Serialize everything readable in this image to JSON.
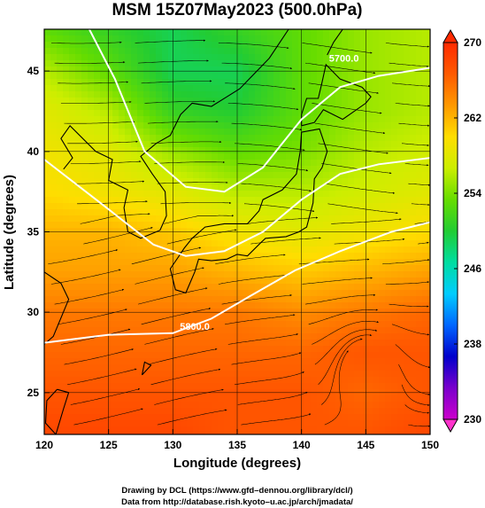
{
  "chart_data": {
    "type": "heatmap",
    "title": "MSM 15Z07May2023 (500.0hPa)",
    "xlabel": "Longitude (degrees)",
    "ylabel": "Latitude  (degrees)",
    "xlim": [
      120,
      150
    ],
    "ylim": [
      22.4,
      47.6
    ],
    "x_ticks": [
      120,
      125,
      130,
      135,
      140,
      145,
      150
    ],
    "y_ticks": [
      25,
      30,
      35,
      40,
      45
    ],
    "grid": true,
    "colorbar": {
      "ticks": [
        230,
        238,
        246,
        254,
        262,
        270
      ],
      "range": [
        230,
        270
      ],
      "colors": [
        "#cc00cc",
        "#7a00cc",
        "#0000cc",
        "#0066ff",
        "#00ccff",
        "#00dda0",
        "#22cc33",
        "#66dd00",
        "#ccee00",
        "#ffdd00",
        "#ff9900",
        "#ff5a00",
        "#ff2a00"
      ]
    },
    "field": "temperature (K)",
    "contours": [
      {
        "label": "5700.0",
        "color": "#ffffff"
      },
      {
        "label": "5800.0",
        "color": "#ffffff"
      }
    ],
    "temperature_field": {
      "lons": [
        120,
        125,
        130,
        135,
        140,
        145,
        150
      ],
      "lats": [
        47.5,
        45,
        42.5,
        40,
        37.5,
        35,
        32.5,
        30,
        27.5,
        25,
        22.5
      ],
      "values": [
        [
          253,
          251,
          249,
          251,
          253,
          255,
          256
        ],
        [
          256,
          253,
          249,
          249,
          253,
          255,
          256
        ],
        [
          258,
          256,
          251,
          250,
          253,
          255,
          256
        ],
        [
          259,
          258,
          255,
          253,
          254,
          256,
          257
        ],
        [
          260,
          259,
          258,
          256,
          256,
          257,
          258
        ],
        [
          262,
          262,
          261,
          259,
          258,
          259,
          260
        ],
        [
          263,
          263,
          263,
          262,
          261,
          262,
          263
        ],
        [
          265,
          265,
          265,
          265,
          264,
          265,
          266
        ],
        [
          266,
          266,
          266,
          266,
          266,
          267,
          267
        ],
        [
          267,
          267,
          267,
          267,
          267,
          266,
          267
        ],
        [
          268,
          268,
          268,
          267,
          267,
          267,
          268
        ]
      ]
    }
  },
  "credits": {
    "line1": "Drawing by DCL (https://www.gfd–dennou.org/library/dcl/)",
    "line2": "Data from http://database.rish.kyoto–u.ac.jp/arch/jmadata/"
  }
}
